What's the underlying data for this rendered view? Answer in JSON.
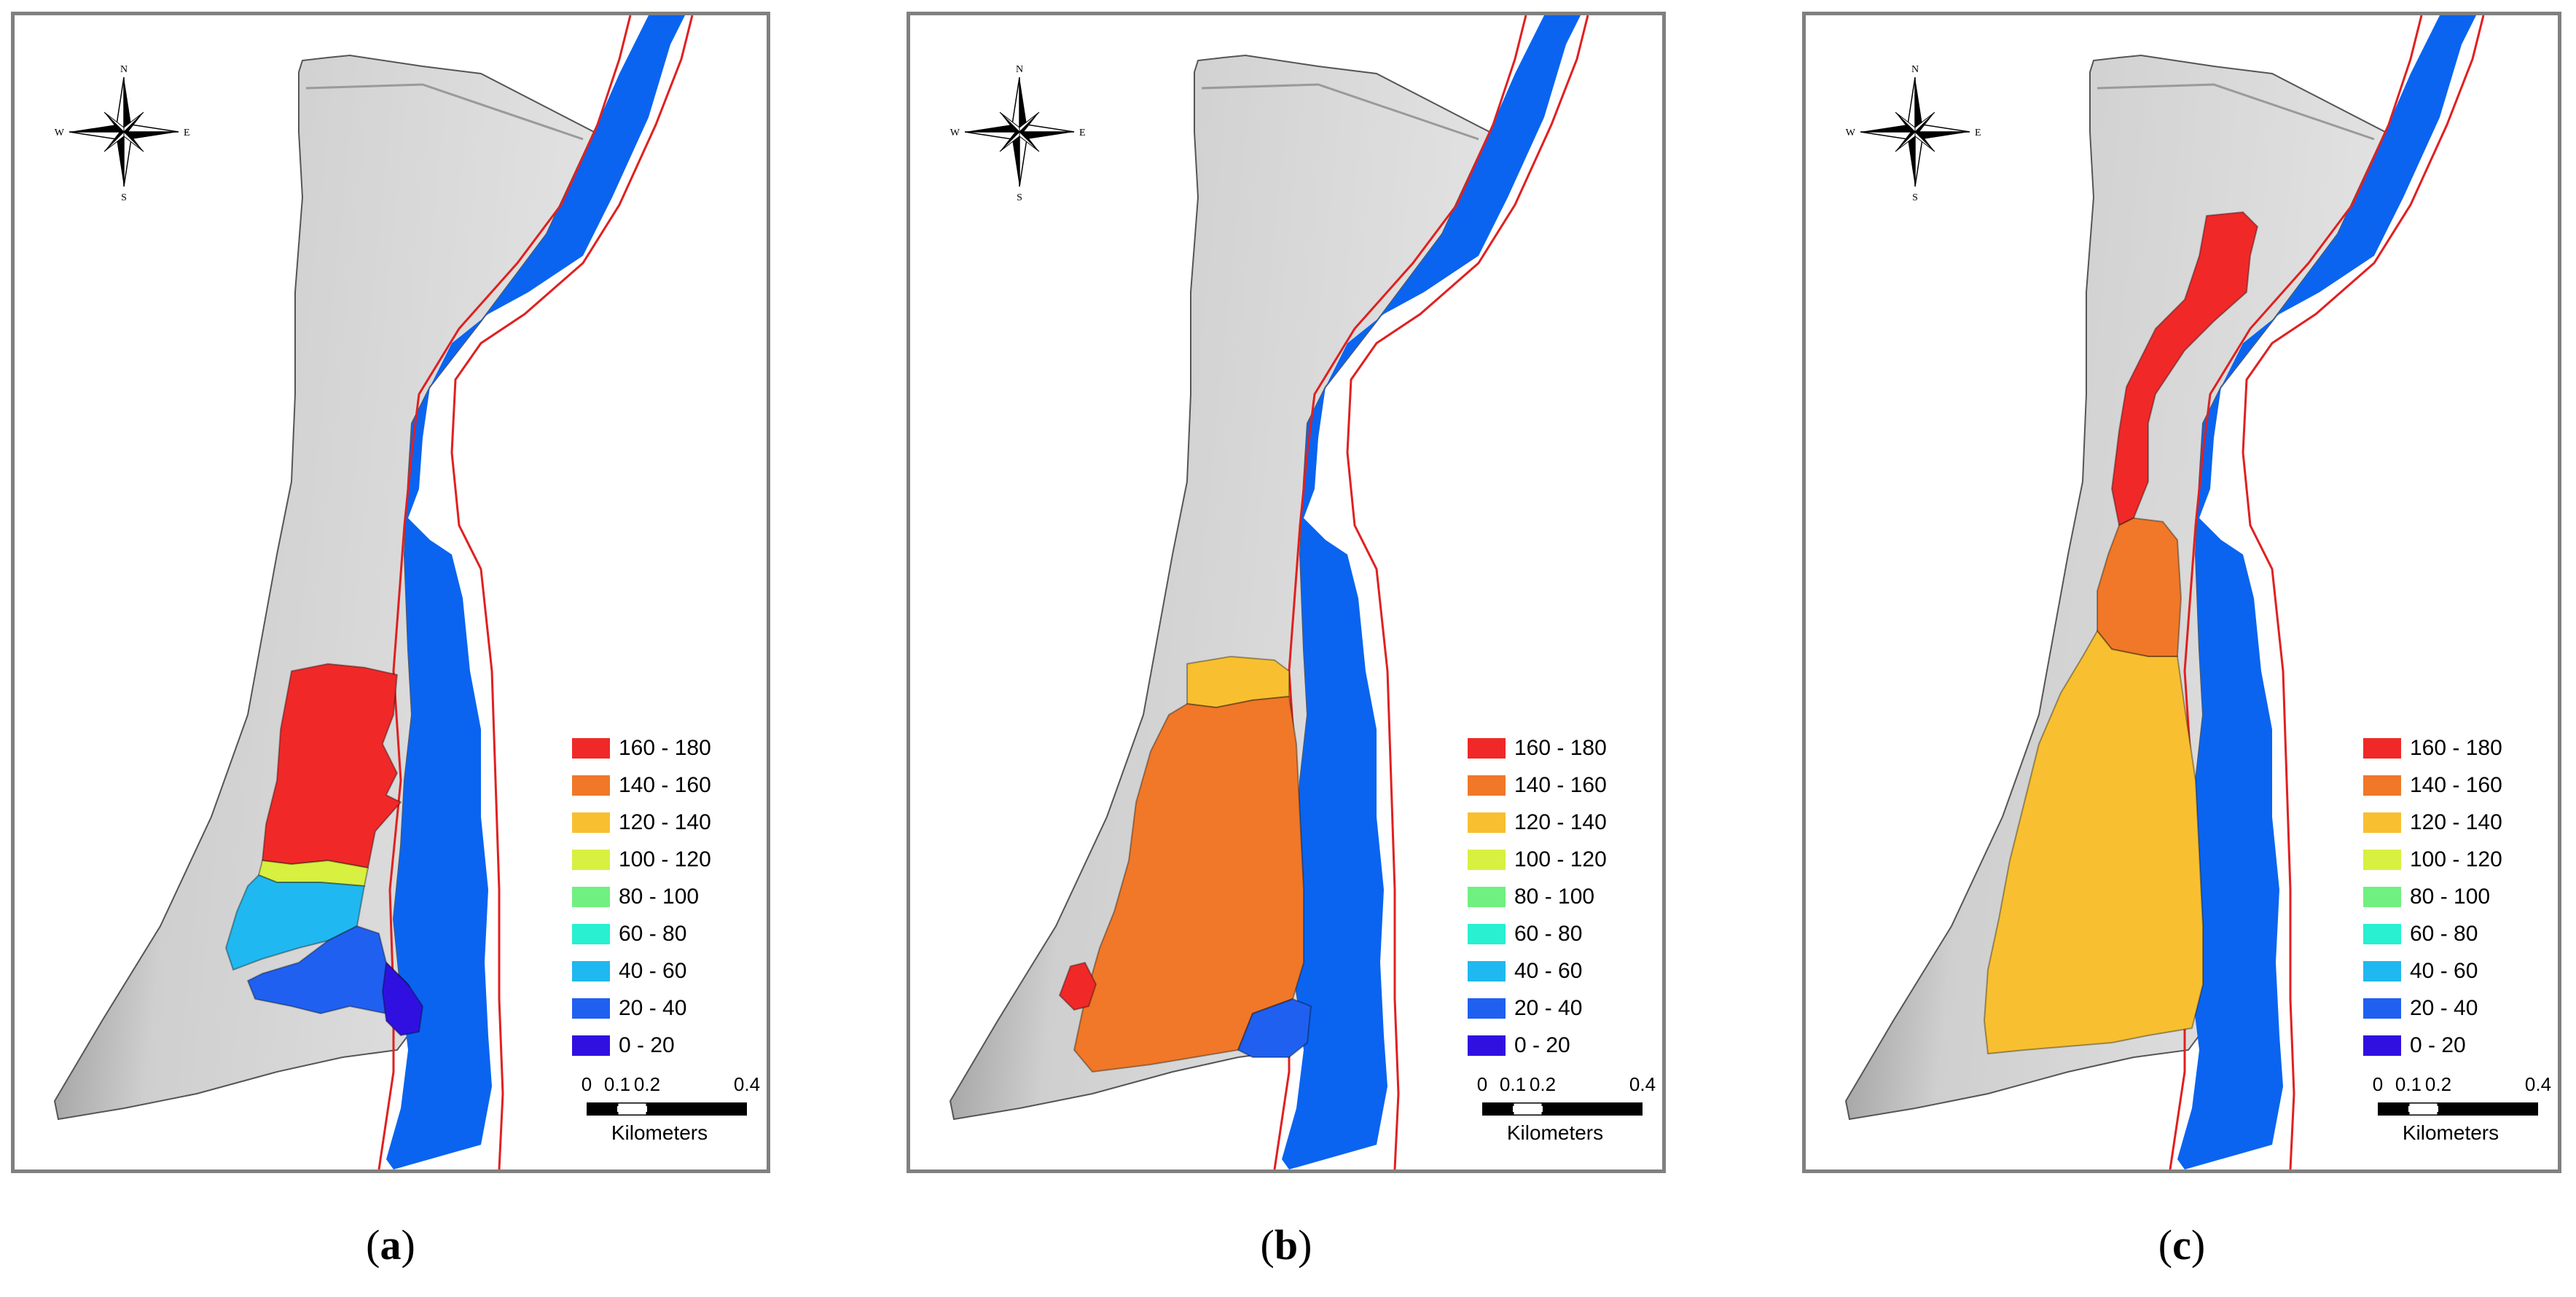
{
  "legend": {
    "classes": [
      {
        "label": "160 - 180",
        "color": "#f02828"
      },
      {
        "label": "140 - 160",
        "color": "#f07828"
      },
      {
        "label": "120 - 140",
        "color": "#f8c030"
      },
      {
        "label": "100 - 120",
        "color": "#d8f040"
      },
      {
        "label": "80 - 100",
        "color": "#70f080"
      },
      {
        "label": "60 - 80",
        "color": "#28f0d0"
      },
      {
        "label": "40 - 60",
        "color": "#20b8f0"
      },
      {
        "label": "20 - 40",
        "color": "#2060f0"
      },
      {
        "label": "0 - 20",
        "color": "#3010e0"
      }
    ]
  },
  "scalebar": {
    "ticks": [
      "0",
      "0.1",
      "0.2",
      "0.4"
    ],
    "unit": "Kilometers"
  },
  "compass": {
    "n": "N",
    "s": "S",
    "e": "E",
    "w": "W"
  },
  "panels": [
    {
      "caption_prefix": "(",
      "caption_letter": "a",
      "caption_suffix": ")"
    },
    {
      "caption_prefix": "(",
      "caption_letter": "b",
      "caption_suffix": ")"
    },
    {
      "caption_prefix": "(",
      "caption_letter": "c",
      "caption_suffix": ")"
    }
  ],
  "colors": {
    "river": "#0a64f0",
    "boundary": "#e02020",
    "terrain": "#cfcfcf",
    "terrain_dark": "#7a7a7a"
  }
}
